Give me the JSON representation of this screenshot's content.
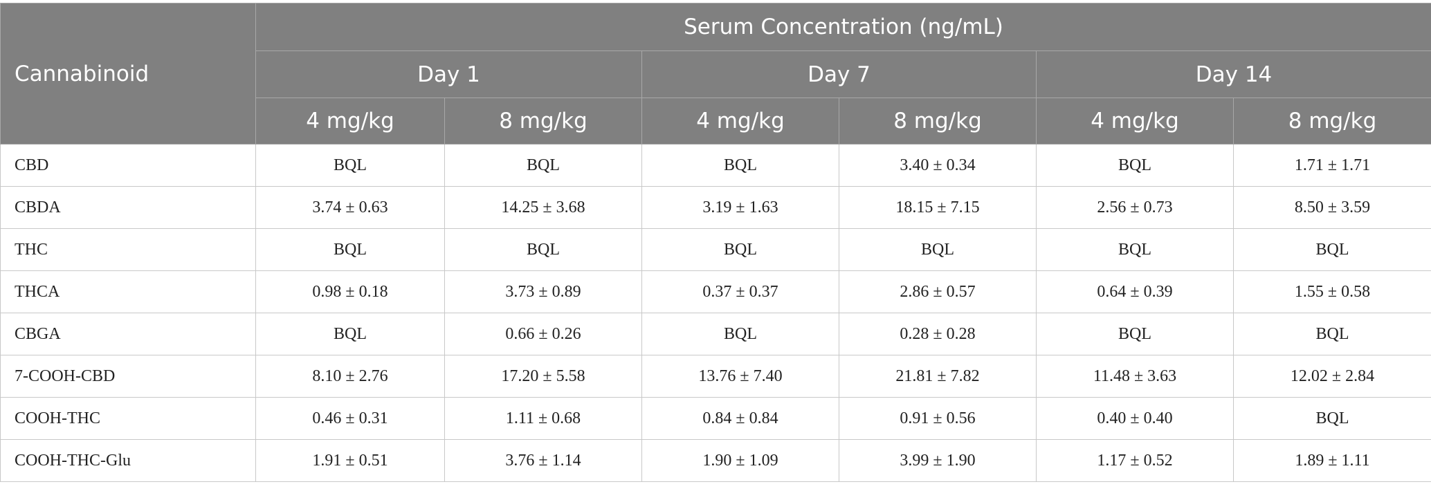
{
  "header": {
    "first_column": "Cannabinoid",
    "group_title": "Serum Concentration (ng/mL)",
    "days": [
      "Day 1",
      "Day 7",
      "Day 14"
    ],
    "doses": [
      "4 mg/kg",
      "8 mg/kg",
      "4 mg/kg",
      "8 mg/kg",
      "4 mg/kg",
      "8 mg/kg"
    ]
  },
  "table": {
    "rows": [
      [
        "CBD",
        "BQL",
        "BQL",
        "BQL",
        "3.40 ± 0.34",
        "BQL",
        "1.71 ± 1.71"
      ],
      [
        "CBDA",
        "3.74 ± 0.63",
        "14.25 ± 3.68",
        "3.19 ± 1.63",
        "18.15 ± 7.15",
        "2.56 ± 0.73",
        "8.50 ± 3.59"
      ],
      [
        "THC",
        "BQL",
        "BQL",
        "BQL",
        "BQL",
        "BQL",
        "BQL"
      ],
      [
        "THCA",
        "0.98 ± 0.18",
        "3.73 ± 0.89",
        "0.37 ± 0.37",
        "2.86 ± 0.57",
        "0.64 ± 0.39",
        "1.55 ± 0.58"
      ],
      [
        "CBGA",
        "BQL",
        "0.66 ± 0.26",
        "BQL",
        "0.28 ± 0.28",
        "BQL",
        "BQL"
      ],
      [
        "7-COOH-CBD",
        "8.10 ± 2.76",
        "17.20 ± 5.58",
        "13.76 ± 7.40",
        "21.81 ± 7.82",
        "11.48 ± 3.63",
        "12.02 ± 2.84"
      ],
      [
        "COOH-THC",
        "0.46 ± 0.31",
        "1.11 ± 0.68",
        "0.84 ± 0.84",
        "0.91 ± 0.56",
        "0.40 ± 0.40",
        "BQL"
      ],
      [
        "COOH-THC-Glu",
        "1.91 ± 0.51",
        "3.76 ± 1.14",
        "1.90 ± 1.09",
        "3.99 ± 1.90",
        "1.17 ± 0.52",
        "1.89 ± 1.11"
      ]
    ]
  }
}
